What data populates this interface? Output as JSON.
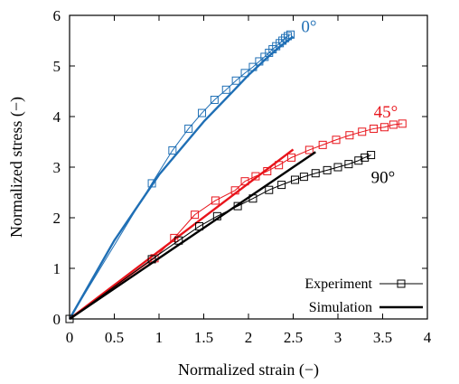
{
  "chart_data": {
    "type": "line",
    "xlabel": "Normalized strain (−)",
    "ylabel": "Normalized stress (−)",
    "xlim": [
      0,
      4
    ],
    "ylim": [
      0,
      6
    ],
    "xticks": [
      "0",
      "0.5",
      "1",
      "1.5",
      "2",
      "2.5",
      "3",
      "3.5",
      "4"
    ],
    "yticks": [
      "0",
      "1",
      "2",
      "3",
      "4",
      "5",
      "6"
    ],
    "grid": false,
    "legend_position": "bottom-right",
    "legend": {
      "experiment": "Experiment",
      "simulation": "Simulation"
    },
    "series": [
      {
        "name": "0°",
        "color": "#1f6fb5",
        "experiment": [
          [
            0,
            0
          ],
          [
            0.92,
            2.68
          ],
          [
            1.15,
            3.33
          ],
          [
            1.33,
            3.76
          ],
          [
            1.48,
            4.07
          ],
          [
            1.62,
            4.33
          ],
          [
            1.75,
            4.53
          ],
          [
            1.86,
            4.71
          ],
          [
            1.96,
            4.86
          ],
          [
            2.05,
            4.98
          ],
          [
            2.12,
            5.09
          ],
          [
            2.18,
            5.18
          ],
          [
            2.23,
            5.26
          ],
          [
            2.27,
            5.33
          ],
          [
            2.31,
            5.39
          ],
          [
            2.35,
            5.45
          ],
          [
            2.38,
            5.5
          ],
          [
            2.41,
            5.55
          ],
          [
            2.44,
            5.59
          ],
          [
            2.47,
            5.62
          ]
        ],
        "simulation": [
          [
            0,
            0
          ],
          [
            0.5,
            1.55
          ],
          [
            1.0,
            2.85
          ],
          [
            1.5,
            3.9
          ],
          [
            1.8,
            4.45
          ],
          [
            2.0,
            4.82
          ],
          [
            2.2,
            5.15
          ],
          [
            2.35,
            5.38
          ],
          [
            2.5,
            5.58
          ]
        ]
      },
      {
        "name": "45°",
        "color": "#e8141b",
        "experiment": [
          [
            0,
            0
          ],
          [
            0.95,
            1.2
          ],
          [
            1.17,
            1.6
          ],
          [
            1.4,
            2.06
          ],
          [
            1.63,
            2.34
          ],
          [
            1.85,
            2.54
          ],
          [
            1.96,
            2.72
          ],
          [
            2.08,
            2.82
          ],
          [
            2.21,
            2.92
          ],
          [
            2.34,
            3.04
          ],
          [
            2.48,
            3.19
          ],
          [
            2.68,
            3.34
          ],
          [
            2.83,
            3.44
          ],
          [
            2.98,
            3.54
          ],
          [
            3.13,
            3.63
          ],
          [
            3.27,
            3.7
          ],
          [
            3.4,
            3.76
          ],
          [
            3.52,
            3.79
          ],
          [
            3.62,
            3.84
          ],
          [
            3.72,
            3.86
          ]
        ],
        "simulation": [
          [
            0,
            0
          ],
          [
            0.5,
            0.67
          ],
          [
            1.0,
            1.34
          ],
          [
            1.5,
            2.01
          ],
          [
            2.0,
            2.68
          ],
          [
            2.5,
            3.35
          ]
        ]
      },
      {
        "name": "90°",
        "color": "#000000",
        "experiment": [
          [
            0,
            0
          ],
          [
            0.92,
            1.18
          ],
          [
            1.22,
            1.55
          ],
          [
            1.45,
            1.83
          ],
          [
            1.65,
            2.03
          ],
          [
            1.88,
            2.23
          ],
          [
            2.05,
            2.38
          ],
          [
            2.23,
            2.55
          ],
          [
            2.37,
            2.65
          ],
          [
            2.52,
            2.75
          ],
          [
            2.62,
            2.81
          ],
          [
            2.75,
            2.88
          ],
          [
            2.88,
            2.94
          ],
          [
            3.0,
            3.0
          ],
          [
            3.12,
            3.06
          ],
          [
            3.23,
            3.13
          ],
          [
            3.3,
            3.19
          ],
          [
            3.37,
            3.24
          ]
        ],
        "simulation": [
          [
            0,
            0
          ],
          [
            0.5,
            0.6
          ],
          [
            1.0,
            1.2
          ],
          [
            1.5,
            1.8
          ],
          [
            2.0,
            2.4
          ],
          [
            2.5,
            3.0
          ],
          [
            2.75,
            3.3
          ]
        ]
      }
    ]
  }
}
